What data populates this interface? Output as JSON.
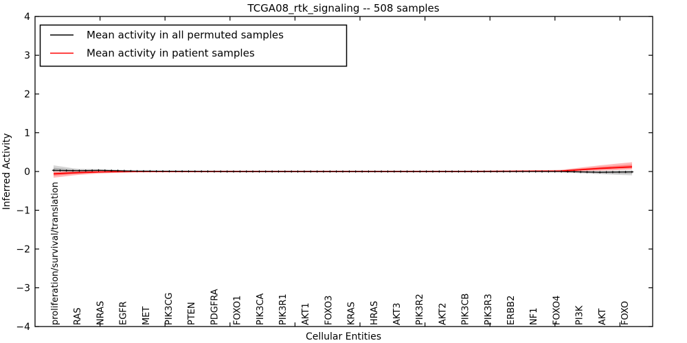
{
  "colors": {
    "background": "#ffffff",
    "frame": "#000000",
    "permuted_line": "#000000",
    "patient_line": "#ff0000",
    "permuted_band": "rgba(0,0,0,0.16)",
    "patient_band": "rgba(255,0,0,0.28)"
  },
  "chart_data": {
    "type": "line",
    "title": "TCGA08_rtk_signaling -- 508 samples",
    "xlabel": "Cellular Entities",
    "ylabel": "Inferred Activity",
    "ylim": [
      -4,
      4
    ],
    "yticks": [
      4,
      3,
      2,
      1,
      0,
      -1,
      -2,
      -3,
      -4
    ],
    "grid": false,
    "legend_position": "upper left",
    "categories": [
      "proliferation/survival/translation",
      "RAS",
      "NRAS",
      "EGFR",
      "MET",
      "PIK3CG",
      "PTEN",
      "PDGFRA",
      "FOXO1",
      "PIK3CA",
      "PIK3R1",
      "AKT1",
      "FOXO3",
      "KRAS",
      "HRAS",
      "AKT3",
      "PIK3R2",
      "AKT2",
      "PIK3CB",
      "PIK3R3",
      "ERBB2",
      "NF1",
      "FOXO4",
      "PI3K",
      "AKT",
      "FOXO"
    ],
    "series": [
      {
        "name": "Mean activity in all permuted samples",
        "color": "#000000",
        "band_color": "rgba(0,0,0,0.16)",
        "marker": "plus",
        "anchors": [
          [
            0.0,
            0.03,
            -0.02,
            0.16
          ],
          [
            0.04,
            0.02,
            -0.01,
            0.07
          ],
          [
            0.08,
            0.03,
            0.0,
            0.06
          ],
          [
            0.14,
            0.01,
            -0.01,
            0.03
          ],
          [
            0.29,
            0.0,
            -0.01,
            0.02
          ],
          [
            0.5,
            0.0,
            -0.01,
            0.01
          ],
          [
            0.71,
            0.0,
            -0.01,
            0.01
          ],
          [
            0.875,
            0.0,
            -0.02,
            0.02
          ],
          [
            0.945,
            -0.02,
            -0.07,
            0.02
          ],
          [
            1.0,
            -0.01,
            -0.1,
            0.03
          ]
        ]
      },
      {
        "name": "Mean activity in patient samples",
        "color": "#ff0000",
        "band_color": "rgba(255,0,0,0.28)",
        "marker": "none",
        "anchors": [
          [
            0.0,
            -0.06,
            -0.16,
            0.0
          ],
          [
            0.04,
            -0.03,
            -0.09,
            0.01
          ],
          [
            0.08,
            -0.01,
            -0.05,
            0.01
          ],
          [
            0.14,
            0.0,
            -0.02,
            0.01
          ],
          [
            0.29,
            0.0,
            -0.01,
            0.02
          ],
          [
            0.5,
            0.0,
            -0.01,
            0.02
          ],
          [
            0.71,
            0.0,
            -0.01,
            0.02
          ],
          [
            0.875,
            0.01,
            -0.01,
            0.04
          ],
          [
            0.945,
            0.08,
            0.02,
            0.16
          ],
          [
            1.0,
            0.12,
            0.05,
            0.24
          ]
        ]
      }
    ]
  }
}
